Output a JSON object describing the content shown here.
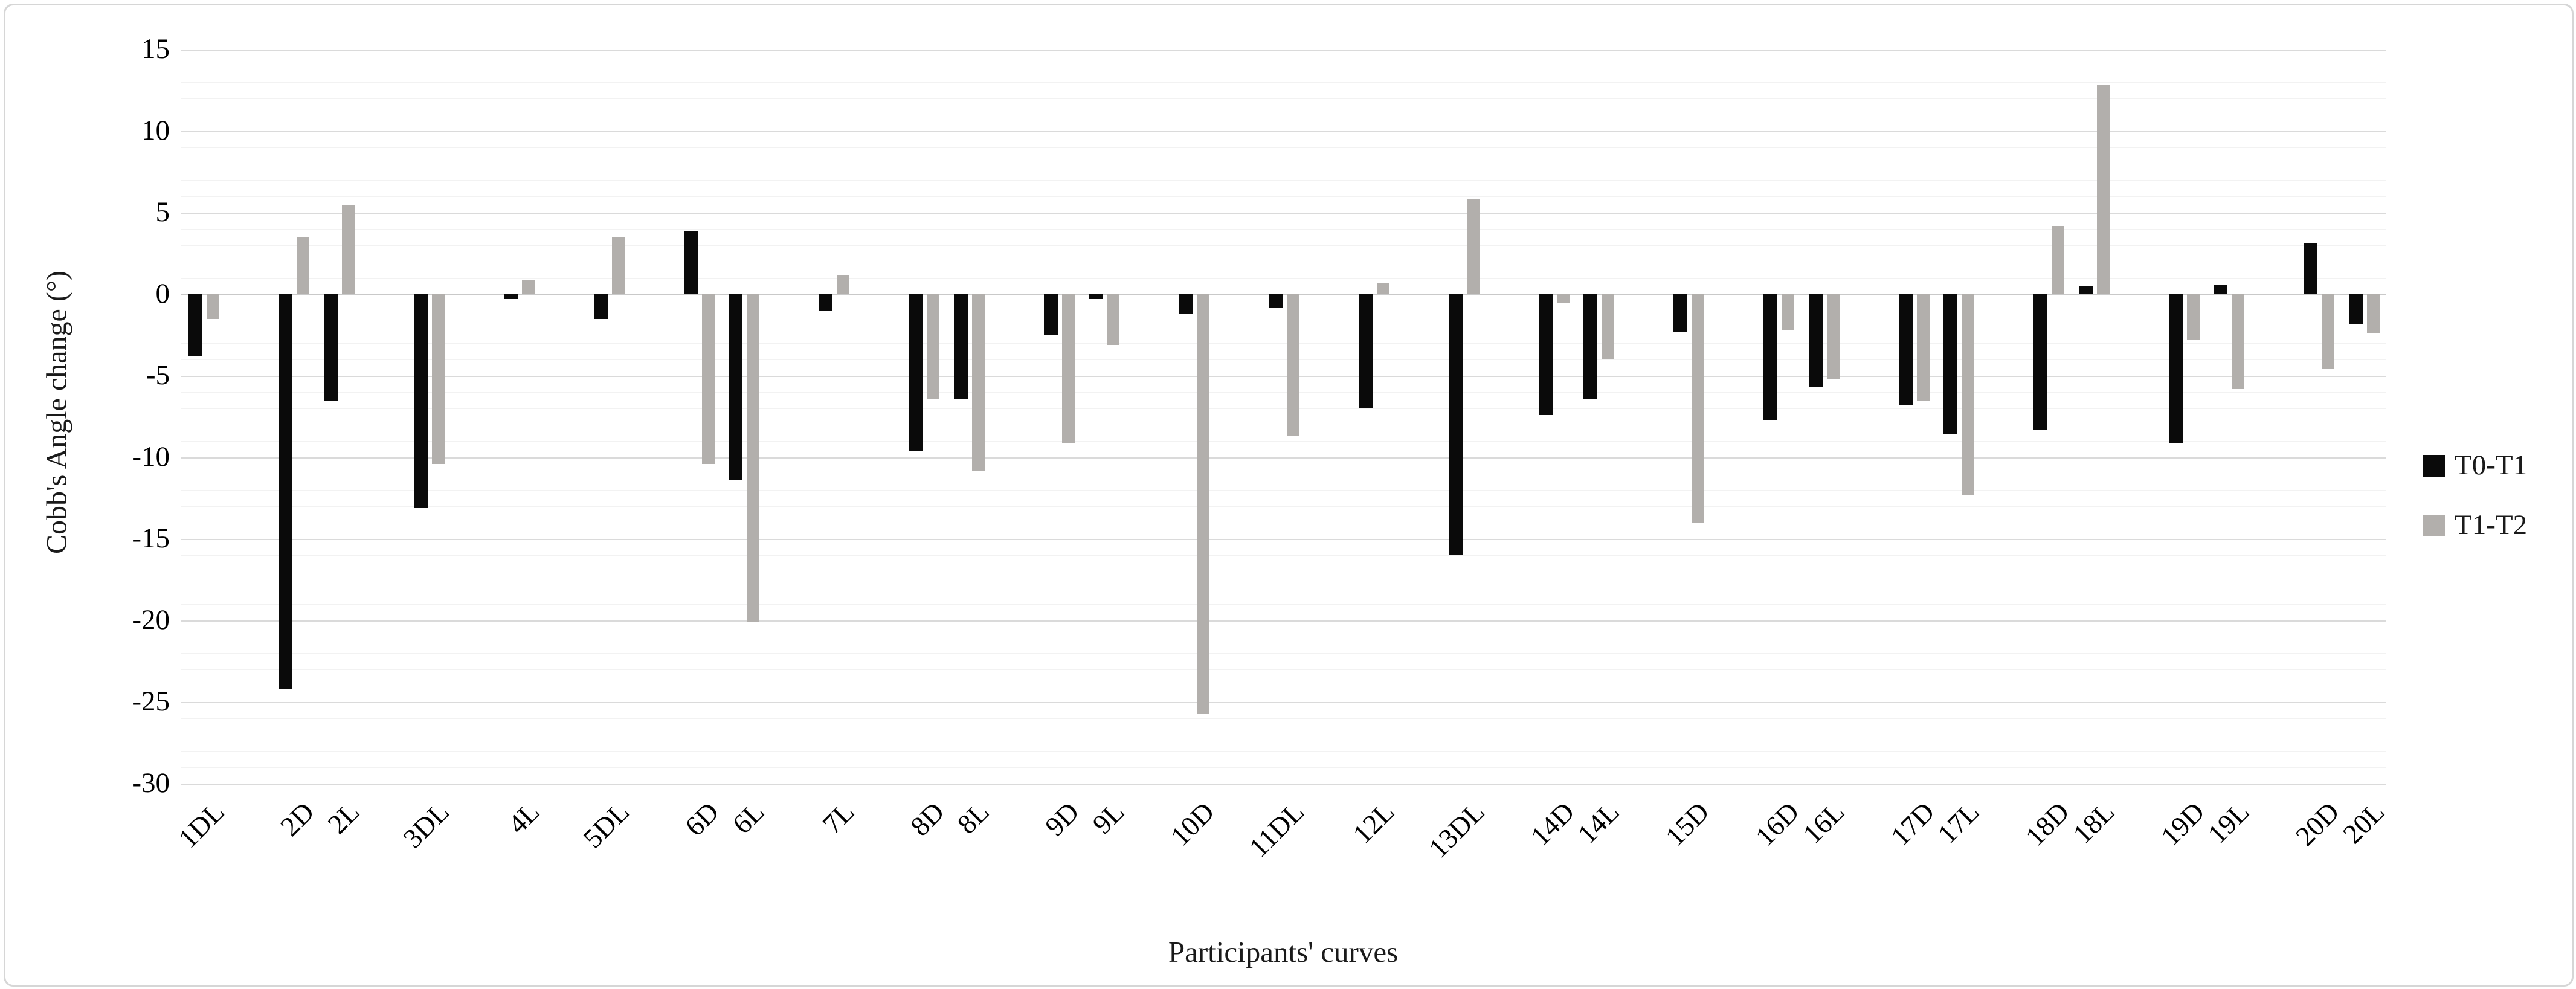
{
  "chart_data": {
    "type": "bar",
    "title": "",
    "xlabel": "Participants' curves",
    "ylabel": "Cobb's Angle change (°)",
    "ylim": [
      -30,
      15
    ],
    "yticks": [
      15,
      10,
      5,
      0,
      -5,
      -10,
      -15,
      -20,
      -25,
      -30
    ],
    "ytick_minor_step": 1,
    "grid": true,
    "legend_position": "right",
    "categories": [
      "1DL",
      "2D",
      "2L",
      "3DL",
      "4L",
      "5DL",
      "6D",
      "6L",
      "7L",
      "8D",
      "8L",
      "9D",
      "9L",
      "10D",
      "11DL",
      "12L",
      "13DL",
      "14D",
      "14L",
      "15D",
      "16D",
      "16L",
      "17D",
      "17L",
      "18D",
      "18L",
      "19D",
      "19L",
      "20D",
      "20L"
    ],
    "groups": [
      [
        "1DL"
      ],
      [
        "2D",
        "2L"
      ],
      [
        "3DL"
      ],
      [
        "4L"
      ],
      [
        "5DL"
      ],
      [
        "6D",
        "6L"
      ],
      [
        "7L"
      ],
      [
        "8D",
        "8L"
      ],
      [
        "9D",
        "9L"
      ],
      [
        "10D"
      ],
      [
        "11DL"
      ],
      [
        "12L"
      ],
      [
        "13DL"
      ],
      [
        "14D",
        "14L"
      ],
      [
        "15D"
      ],
      [
        "16D",
        "16L"
      ],
      [
        "17D",
        "17L"
      ],
      [
        "18D",
        "18L"
      ],
      [
        "19D",
        "19L"
      ],
      [
        "20D",
        "20L"
      ]
    ],
    "series": [
      {
        "name": "T0-T1",
        "color": "#0a0a0a",
        "values": [
          -3.8,
          -24.2,
          -6.5,
          -13.1,
          -0.3,
          -1.5,
          3.9,
          -11.4,
          -1.0,
          -9.6,
          -6.4,
          -2.5,
          -0.3,
          -1.2,
          -0.8,
          -7.0,
          -16.0,
          -7.4,
          -6.4,
          -2.3,
          -7.7,
          -5.7,
          -6.8,
          -8.6,
          -8.3,
          0.5,
          -9.1,
          0.6,
          3.1,
          -1.8
        ]
      },
      {
        "name": "T1-T2",
        "color": "#b2afac",
        "values": [
          -1.5,
          3.5,
          5.5,
          -10.4,
          0.9,
          3.5,
          -10.4,
          -20.1,
          1.2,
          -6.4,
          -10.8,
          -9.1,
          -3.1,
          -25.7,
          -8.7,
          0.7,
          5.8,
          -0.5,
          -4.0,
          -14.0,
          -2.2,
          -5.2,
          -6.5,
          -12.3,
          4.2,
          12.8,
          -2.8,
          -5.8,
          -4.6,
          -2.4
        ]
      }
    ]
  },
  "legend": {
    "items": [
      {
        "label": "T0-T1",
        "color": "#0a0a0a"
      },
      {
        "label": "T1-T2",
        "color": "#b2afac"
      }
    ]
  }
}
